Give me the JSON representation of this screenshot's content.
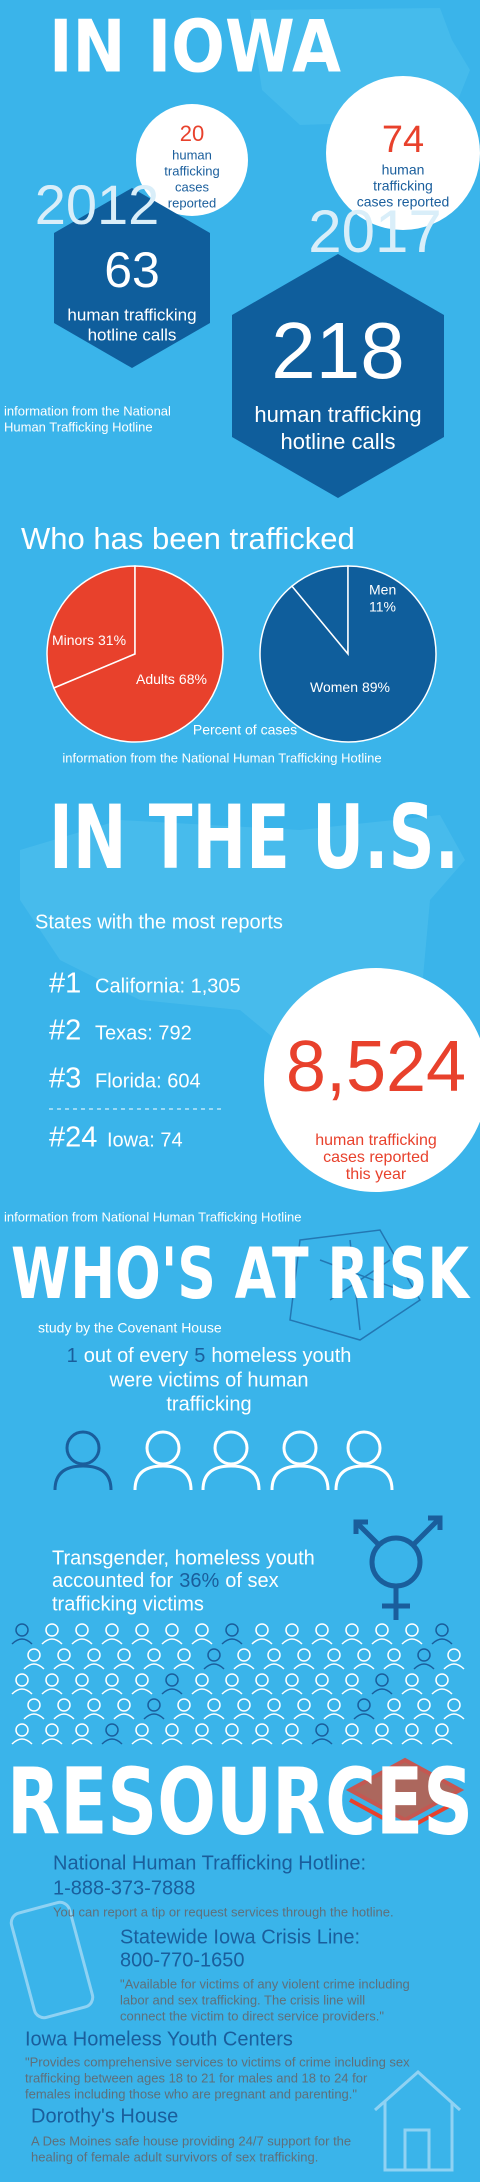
{
  "iowa": {
    "title": "IN IOWA",
    "year_2012": "2012",
    "cases_2012": {
      "number": "20",
      "label": [
        "human",
        "trafficking",
        "cases",
        "reported"
      ]
    },
    "calls_2012": {
      "number": "63",
      "label": [
        "human trafficking",
        "hotline calls"
      ]
    },
    "year_2017": "2017",
    "cases_2017": {
      "number": "74",
      "label": [
        "human",
        "trafficking",
        "cases reported"
      ]
    },
    "calls_2017": {
      "number": "218",
      "label": [
        "human trafficking",
        "hotline calls"
      ]
    },
    "source": [
      "information from the National",
      "Human Trafficking Hotline"
    ]
  },
  "trafficked": {
    "title": "Who has been trafficked",
    "pies": [
      {
        "slices": [
          {
            "name": "Minors",
            "value": 31,
            "value_label": "31%",
            "color": "#e8412c"
          },
          {
            "name": "Adults",
            "value": 68,
            "value_label": "68%",
            "color": "#e8412c"
          }
        ]
      },
      {
        "slices": [
          {
            "name": "Men",
            "value": 11,
            "value_label": "11%",
            "color": "#0f5e9c"
          },
          {
            "name": "Women",
            "value": 89,
            "value_label": "89%",
            "color": "#0f5e9c"
          }
        ]
      }
    ],
    "caption": "Percent of cases",
    "source": "information from the National Human Trafficking Hotline"
  },
  "us": {
    "title": "IN THE U.S.",
    "subtitle": "States with the most reports",
    "rankings": [
      {
        "rank": "#1",
        "state": "California: 1,305"
      },
      {
        "rank": "#2",
        "state": "Texas: 792"
      },
      {
        "rank": "#3",
        "state": "Florida: 604"
      },
      {
        "rank": "#24",
        "state": "Iowa: 74"
      }
    ],
    "total": {
      "number": "8,524",
      "label": [
        "human trafficking",
        "cases reported",
        "this year"
      ]
    },
    "source": "information from National Human Trafficking Hotline"
  },
  "risk": {
    "title": "WHO'S AT RISK",
    "source": "study by the Covenant House",
    "stat": {
      "line1": [
        "1",
        "out of every",
        "5",
        "homeless youth"
      ],
      "line2": "were victims of human",
      "line3": "trafficking"
    },
    "transgender": {
      "line1": "Transgender, homeless youth",
      "line2": [
        "accounted for",
        "36%",
        "of sex"
      ],
      "line3": "trafficking victims"
    }
  },
  "resources": {
    "title": "RESOURCES",
    "items": [
      {
        "name": "National Human Trafficking Hotline:",
        "phone": "1-888-373-7888",
        "description": [
          "You can report a tip or request services through the hotline."
        ]
      },
      {
        "name": "Statewide Iowa Crisis Line:",
        "phone": "800-770-1650",
        "description": [
          "\"Available for victims of any violent crime including",
          "labor and sex trafficking. The crisis line will",
          "connect the victim to direct service providers.\""
        ]
      },
      {
        "name": "Iowa Homeless Youth Centers",
        "description": [
          "\"Provides comprehensive services to victims of crime including sex",
          "trafficking between ages 18 to 21 for males and 18 to 24 for",
          "females including those who are pregnant and parenting.\""
        ]
      },
      {
        "name": "Dorothy's House",
        "description": [
          "A Des Moines safe house providing 24/7 support for the",
          "healing of female adult survivors of sex trafficking."
        ]
      }
    ]
  }
}
